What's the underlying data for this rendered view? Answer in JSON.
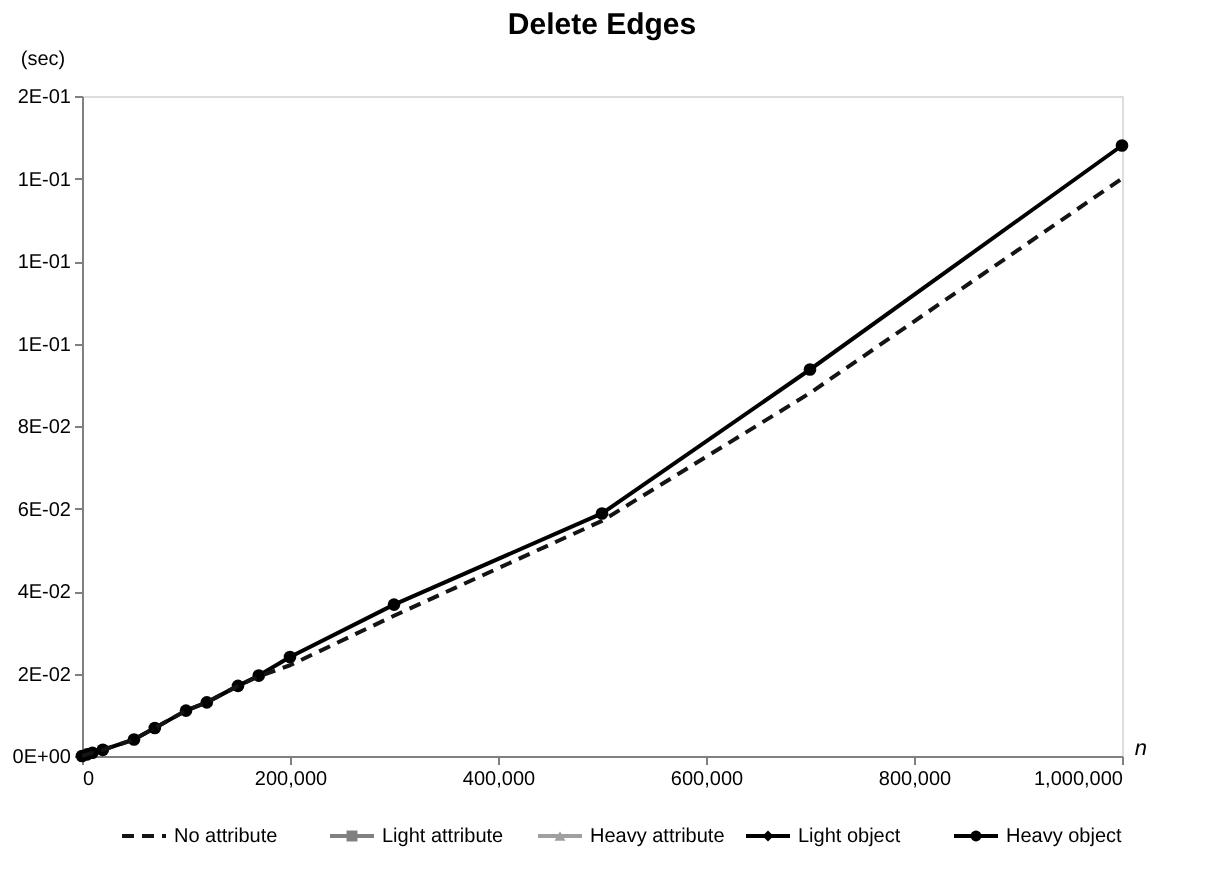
{
  "chart_data": {
    "type": "line",
    "title": "Delete Edges",
    "xlabel": "n",
    "ylabel": "(sec)",
    "x": [
      0,
      5000,
      10000,
      20000,
      50000,
      70000,
      100000,
      120000,
      150000,
      170000,
      200000,
      300000,
      500000,
      700000,
      1000000
    ],
    "series": [
      {
        "name": "No attribute",
        "color": "#141414",
        "line_style": "dashed",
        "marker": "none",
        "values": [
          0,
          0.0004,
          0.0008,
          0.0015,
          0.004,
          0.0068,
          0.011,
          0.013,
          0.017,
          0.0193,
          0.022,
          0.034,
          0.057,
          0.088,
          0.14
        ]
      },
      {
        "name": "Light attribute",
        "color": "#808080",
        "line_style": "solid",
        "marker": "square",
        "values": [
          null,
          null,
          null,
          null,
          null,
          null,
          null,
          null,
          null,
          null,
          null,
          null,
          null,
          null,
          null
        ]
      },
      {
        "name": "Heavy attribute",
        "color": "#a0a0a0",
        "line_style": "solid",
        "marker": "triangle",
        "values": [
          null,
          null,
          null,
          null,
          null,
          null,
          null,
          null,
          null,
          null,
          null,
          null,
          null,
          null,
          null
        ]
      },
      {
        "name": "Light object",
        "color": "#000000",
        "line_style": "solid",
        "marker": "diamond",
        "values": [
          null,
          null,
          null,
          null,
          null,
          null,
          null,
          null,
          null,
          null,
          null,
          null,
          null,
          null,
          null
        ]
      },
      {
        "name": "Heavy object",
        "color": "#000000",
        "line_style": "solid",
        "marker": "circle",
        "values": [
          0,
          0.0004,
          0.0008,
          0.0015,
          0.004,
          0.0068,
          0.011,
          0.013,
          0.017,
          0.0195,
          0.024,
          0.0367,
          0.0588,
          0.0937,
          0.148
        ]
      }
    ],
    "xlim": [
      0,
      1000000
    ],
    "xticks": [
      0,
      {
        "value": 200000,
        "label": "200,000"
      },
      {
        "value": 400000,
        "label": "400,000"
      },
      {
        "value": 600000,
        "label": "600,000"
      },
      {
        "value": 800000,
        "label": "800,000"
      },
      {
        "value": 1000000,
        "label": "1,000,000"
      }
    ],
    "ylim": [
      0,
      0.16
    ],
    "yticks": [
      {
        "value": 0,
        "label": "0E+00"
      },
      {
        "value": 0.02,
        "label": "2E-02"
      },
      {
        "value": 0.04,
        "label": "4E-02"
      },
      {
        "value": 0.06,
        "label": "6E-02"
      },
      {
        "value": 0.08,
        "label": "8E-02"
      },
      {
        "value": 0.1,
        "label": "1E-01"
      },
      {
        "value": 0.12,
        "label": "1E-01"
      },
      {
        "value": 0.14,
        "label": "1E-01"
      },
      {
        "value": 0.16,
        "label": "2E-01"
      }
    ],
    "grid": false,
    "legend": "bottom"
  }
}
